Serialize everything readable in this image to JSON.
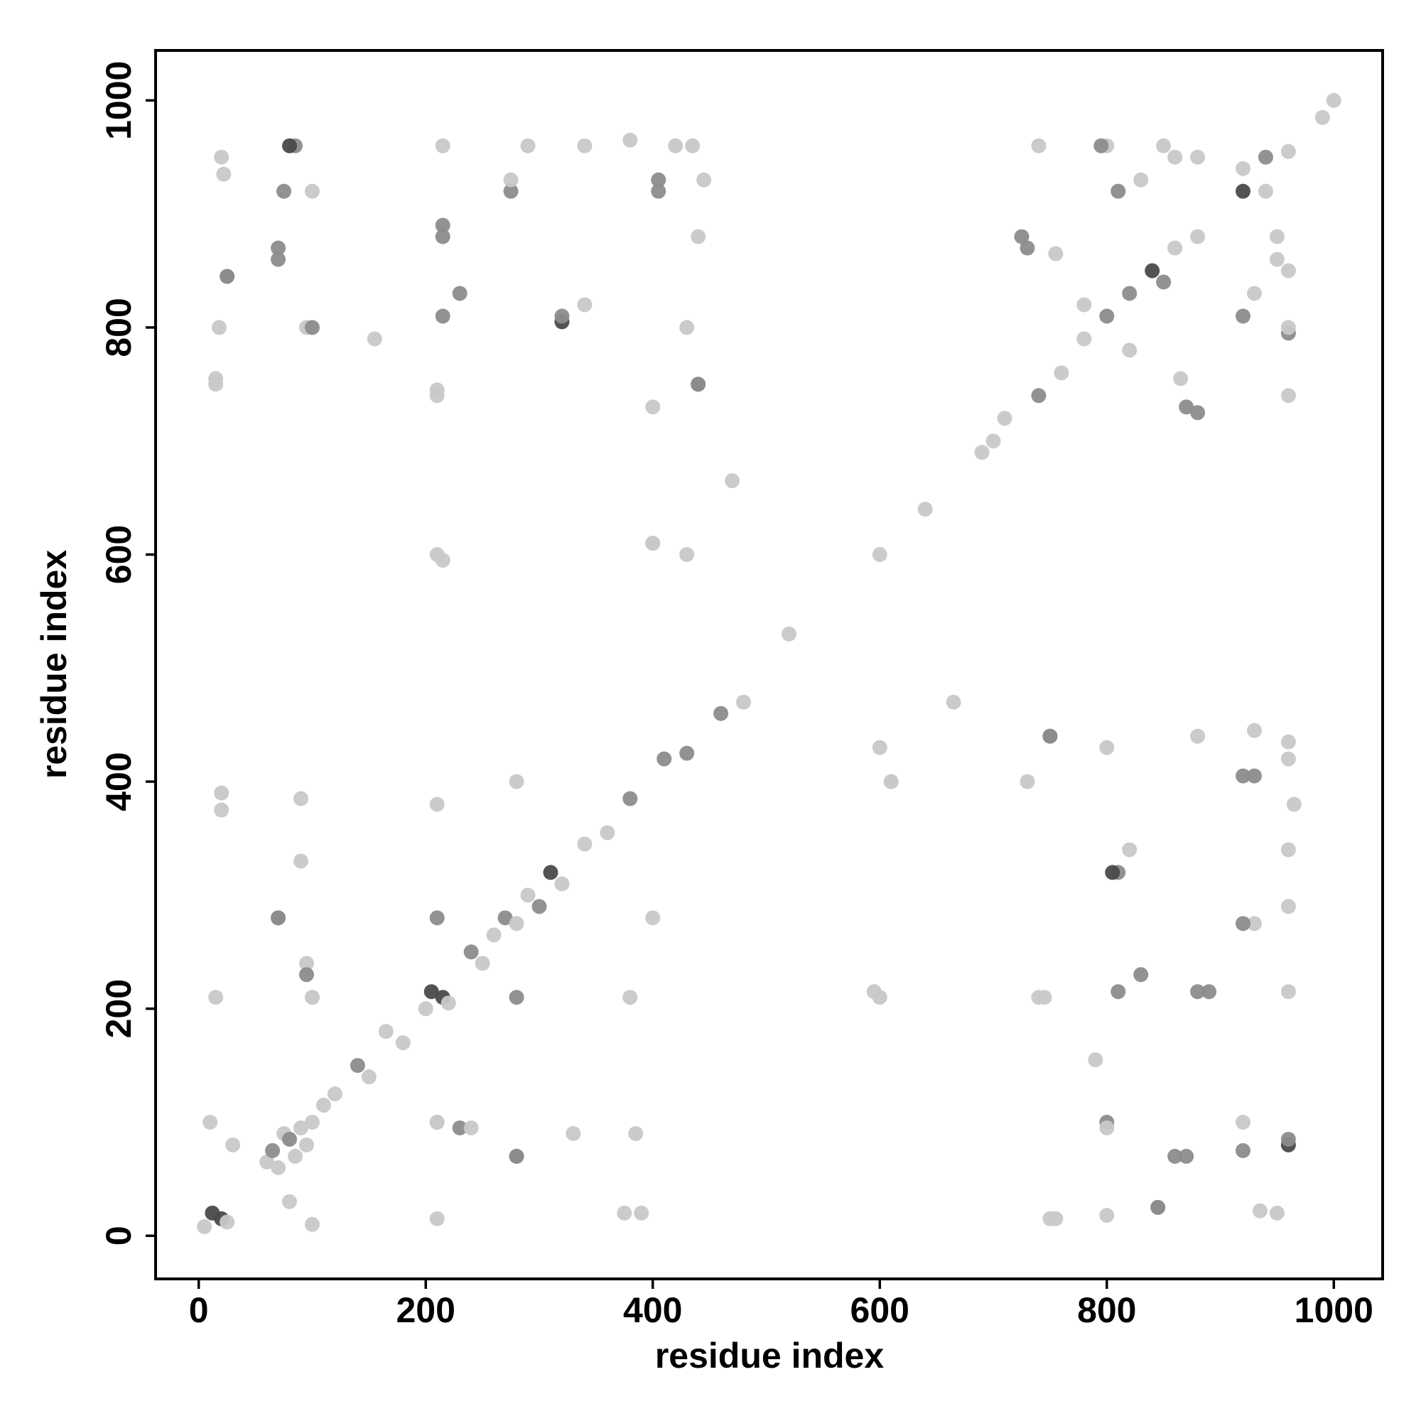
{
  "chart_data": {
    "type": "scatter",
    "x_label": "residue index",
    "y_label": "residue index",
    "xlim": [
      -38,
      1043
    ],
    "ylim": [
      -38,
      1044
    ],
    "xticks": [
      0,
      200,
      400,
      600,
      800,
      1000
    ],
    "yticks": [
      0,
      200,
      400,
      600,
      800,
      1000
    ],
    "x": [
      5,
      12,
      20,
      25,
      60,
      65,
      70,
      75,
      80,
      85,
      90,
      95,
      100,
      110,
      120,
      140,
      150,
      165,
      180,
      200,
      205,
      215,
      220,
      240,
      250,
      260,
      270,
      280,
      290,
      300,
      310,
      320,
      340,
      360,
      380,
      410,
      430,
      460,
      470,
      665,
      480,
      520,
      600,
      640,
      690,
      700,
      710,
      740,
      760,
      780,
      800,
      820,
      840,
      850,
      860,
      880,
      920,
      940,
      960,
      990,
      1000,
      15,
      20,
      15,
      18,
      22,
      25,
      70,
      75,
      85,
      95,
      100,
      90,
      95,
      100,
      70,
      10,
      30,
      210,
      215,
      210,
      215,
      215,
      230,
      275,
      280,
      290,
      340,
      320,
      380,
      385,
      390,
      400,
      405,
      430,
      435,
      440,
      440,
      445,
      280,
      280,
      380,
      340,
      400,
      600,
      600,
      610,
      740,
      750,
      810,
      810,
      830,
      890,
      930,
      930,
      960,
      960,
      870,
      845,
      800,
      950,
      790,
      750,
      740,
      800,
      850,
      880,
      940,
      930,
      950,
      960,
      870,
      820,
      810,
      725,
      755,
      210,
      375,
      755,
      800,
      935,
      845,
      860,
      920,
      960,
      800,
      920,
      330,
      240,
      210,
      280,
      100,
      80,
      100,
      595,
      745,
      880,
      960,
      95,
      920,
      70,
      960,
      960,
      805,
      965,
      90,
      20,
      610,
      920,
      800,
      960,
      750,
      880,
      930,
      210,
      400,
      210,
      820,
      730,
      210,
      430,
      400,
      210,
      440,
      215,
      320,
      230,
      215,
      405,
      275,
      420,
      80,
      70,
      25,
      100,
      20,
      155,
      15,
      960,
      960,
      960,
      950,
      920,
      830,
      860,
      795,
      730,
      780,
      920,
      880,
      865
    ],
    "y": [
      8,
      20,
      15,
      12,
      65,
      75,
      60,
      90,
      85,
      70,
      95,
      80,
      100,
      115,
      125,
      150,
      140,
      180,
      170,
      200,
      215,
      210,
      205,
      250,
      240,
      265,
      280,
      275,
      300,
      290,
      320,
      310,
      345,
      355,
      385,
      420,
      425,
      460,
      665,
      470,
      470,
      530,
      600,
      640,
      690,
      700,
      720,
      740,
      760,
      790,
      810,
      830,
      850,
      840,
      870,
      880,
      920,
      950,
      955,
      985,
      1000,
      210,
      375,
      755,
      800,
      935,
      845,
      860,
      920,
      960,
      800,
      920,
      330,
      240,
      210,
      280,
      100,
      80,
      100,
      595,
      745,
      880,
      960,
      95,
      920,
      70,
      960,
      960,
      805,
      965,
      90,
      20,
      610,
      920,
      800,
      960,
      750,
      880,
      930,
      210,
      400,
      210,
      820,
      730,
      210,
      430,
      400,
      210,
      440,
      215,
      320,
      230,
      215,
      405,
      275,
      420,
      80,
      70,
      25,
      100,
      20,
      155,
      15,
      960,
      960,
      960,
      950,
      920,
      830,
      860,
      795,
      730,
      780,
      920,
      880,
      865,
      15,
      20,
      15,
      18,
      22,
      25,
      70,
      75,
      85,
      95,
      100,
      90,
      95,
      100,
      70,
      10,
      30,
      210,
      215,
      210,
      215,
      215,
      230,
      275,
      280,
      290,
      340,
      320,
      380,
      385,
      390,
      400,
      405,
      430,
      435,
      440,
      440,
      445,
      280,
      280,
      380,
      340,
      400,
      600,
      600,
      610,
      740,
      750,
      810,
      810,
      830,
      890,
      930,
      930,
      960,
      960,
      870,
      845,
      800,
      950,
      790,
      750,
      740,
      800,
      850,
      880,
      940,
      930,
      950,
      960,
      870,
      820,
      810,
      725,
      755
    ],
    "colors": [
      "#c8c8c8",
      "#4a4a4a",
      "#4a4a4a",
      "#c8c8c8",
      "#c8c8c8",
      "#8c8c8c",
      "#c8c8c8",
      "#c8c8c8",
      "#8c8c8c",
      "#c8c8c8",
      "#c8c8c8",
      "#c8c8c8",
      "#c8c8c8",
      "#c8c8c8",
      "#c8c8c8",
      "#8c8c8c",
      "#c8c8c8",
      "#c8c8c8",
      "#c8c8c8",
      "#c8c8c8",
      "#4a4a4a",
      "#4a4a4a",
      "#c8c8c8",
      "#8c8c8c",
      "#c8c8c8",
      "#c8c8c8",
      "#8c8c8c",
      "#c8c8c8",
      "#c8c8c8",
      "#8c8c8c",
      "#4a4a4a",
      "#c8c8c8",
      "#c8c8c8",
      "#c8c8c8",
      "#8c8c8c",
      "#8c8c8c",
      "#8c8c8c",
      "#8c8c8c",
      "#c8c8c8",
      "#c8c8c8",
      "#c8c8c8",
      "#c8c8c8",
      "#c8c8c8",
      "#c8c8c8",
      "#c8c8c8",
      "#c8c8c8",
      "#c8c8c8",
      "#8c8c8c",
      "#c8c8c8",
      "#c8c8c8",
      "#8c8c8c",
      "#8c8c8c",
      "#4a4a4a",
      "#8c8c8c",
      "#c8c8c8",
      "#c8c8c8",
      "#4a4a4a",
      "#8c8c8c",
      "#c8c8c8",
      "#c8c8c8",
      "#c8c8c8",
      "#c8c8c8",
      "#c8c8c8",
      "#c8c8c8",
      "#c8c8c8",
      "#c8c8c8",
      "#8c8c8c",
      "#8c8c8c",
      "#8c8c8c",
      "#8c8c8c",
      "#c8c8c8",
      "#c8c8c8",
      "#c8c8c8",
      "#c8c8c8",
      "#c8c8c8",
      "#8c8c8c",
      "#c8c8c8",
      "#c8c8c8",
      "#c8c8c8",
      "#c8c8c8",
      "#c8c8c8",
      "#8c8c8c",
      "#c8c8c8",
      "#8c8c8c",
      "#8c8c8c",
      "#8c8c8c",
      "#c8c8c8",
      "#c8c8c8",
      "#4a4a4a",
      "#c8c8c8",
      "#c8c8c8",
      "#c8c8c8",
      "#c8c8c8",
      "#8c8c8c",
      "#c8c8c8",
      "#c8c8c8",
      "#8c8c8c",
      "#c8c8c8",
      "#c8c8c8",
      "#8c8c8c",
      "#c8c8c8",
      "#c8c8c8",
      "#c8c8c8",
      "#c8c8c8",
      "#c8c8c8",
      "#c8c8c8",
      "#c8c8c8",
      "#c8c8c8",
      "#8c8c8c",
      "#8c8c8c",
      "#8c8c8c",
      "#8c8c8c",
      "#8c8c8c",
      "#8c8c8c",
      "#c8c8c8",
      "#c8c8c8",
      "#4a4a4a",
      "#8c8c8c",
      "#8c8c8c",
      "#8c8c8c",
      "#c8c8c8",
      "#c8c8c8",
      "#c8c8c8",
      "#c8c8c8",
      "#c8c8c8",
      "#c8c8c8",
      "#c8c8c8",
      "#c8c8c8",
      "#c8c8c8",
      "#c8c8c8",
      "#8c8c8c",
      "#8c8c8c",
      "#c8c8c8",
      "#8c8c8c",
      "#8c8c8c",
      "#c8c8c8",
      "#c8c8c8",
      "#c8c8c8",
      "#c8c8c8",
      "#c8c8c8",
      "#c8c8c8",
      "#8c8c8c",
      "#8c8c8c",
      "#8c8c8c",
      "#8c8c8c",
      "#c8c8c8",
      "#c8c8c8",
      "#c8c8c8",
      "#c8c8c8",
      "#c8c8c8",
      "#8c8c8c",
      "#c8c8c8",
      "#c8c8c8",
      "#c8c8c8",
      "#c8c8c8",
      "#c8c8c8",
      "#8c8c8c",
      "#c8c8c8",
      "#8c8c8c",
      "#8c8c8c",
      "#8c8c8c",
      "#c8c8c8",
      "#c8c8c8",
      "#4a4a4a",
      "#c8c8c8",
      "#c8c8c8",
      "#c8c8c8",
      "#c8c8c8",
      "#8c8c8c",
      "#c8c8c8",
      "#c8c8c8",
      "#8c8c8c",
      "#c8c8c8",
      "#c8c8c8",
      "#8c8c8c",
      "#c8c8c8",
      "#c8c8c8",
      "#c8c8c8",
      "#c8c8c8",
      "#c8c8c8",
      "#c8c8c8",
      "#c8c8c8",
      "#c8c8c8",
      "#8c8c8c",
      "#8c8c8c",
      "#8c8c8c",
      "#8c8c8c",
      "#8c8c8c",
      "#8c8c8c",
      "#c8c8c8",
      "#c8c8c8",
      "#4a4a4a",
      "#8c8c8c",
      "#8c8c8c",
      "#8c8c8c",
      "#c8c8c8",
      "#c8c8c8",
      "#c8c8c8",
      "#c8c8c8",
      "#c8c8c8",
      "#c8c8c8",
      "#c8c8c8",
      "#c8c8c8",
      "#c8c8c8",
      "#c8c8c8",
      "#8c8c8c",
      "#8c8c8c",
      "#c8c8c8",
      "#8c8c8c",
      "#8c8c8c",
      "#c8c8c8"
    ]
  }
}
